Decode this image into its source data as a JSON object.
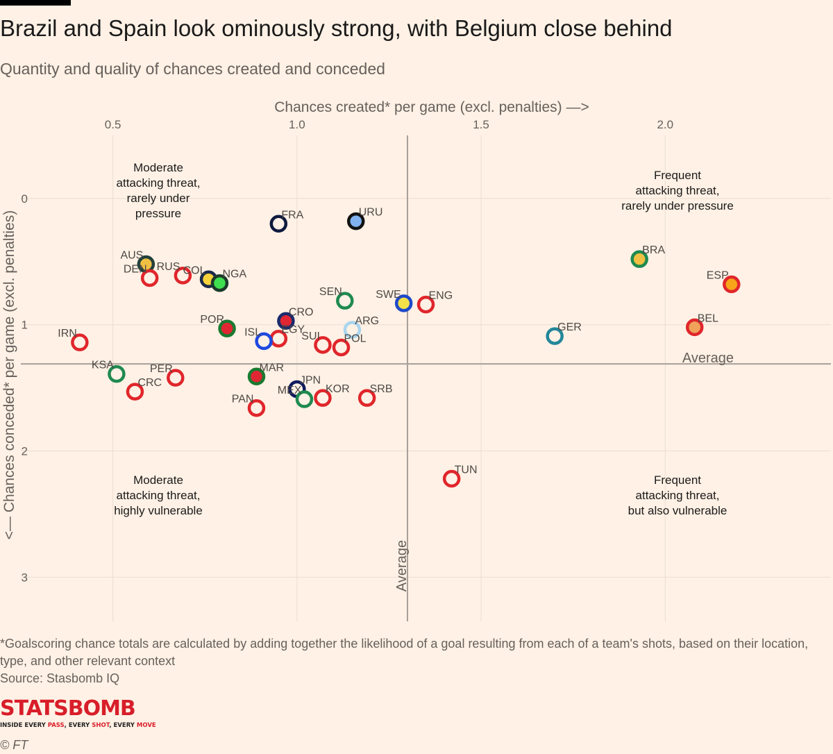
{
  "header": {
    "title": "Brazil and Spain look ominously strong, with Belgium close behind",
    "subtitle": "Quantity and quality of chances created and conceded"
  },
  "chart_data": {
    "type": "scatter",
    "xlabel": "Chances created* per game (excl. penalties) —>",
    "ylabel": "<— Chances conceded* per game (excl. penalties)",
    "xlim": [
      0.25,
      2.45
    ],
    "ylim": [
      -0.5,
      3.35
    ],
    "y_inverted": true,
    "x_ticks": [
      0.5,
      1.0,
      1.5,
      2.0
    ],
    "x_tick_labels": [
      "0.5",
      "1.0",
      "1.5",
      "2.0"
    ],
    "y_ticks": [
      0,
      1,
      2,
      3
    ],
    "y_tick_labels": [
      "0",
      "1",
      "2",
      "3"
    ],
    "average_x": 1.3,
    "average_y": 1.31,
    "average_label": "Average",
    "quadrant_labels": [
      {
        "text": "Moderate attacking threat, rarely under pressure",
        "position": "top-left"
      },
      {
        "text": "Frequent attacking threat, rarely under pressure",
        "position": "top-right"
      },
      {
        "text": "Moderate attacking threat, highly vulnerable",
        "position": "bottom-left"
      },
      {
        "text": "Frequent attacking threat, but also vulnerable",
        "position": "bottom-right"
      }
    ],
    "points": [
      {
        "team": "FRA",
        "x": 0.95,
        "y": 0.2,
        "fill": "#fff1e5",
        "ring": "#0f1a3e",
        "label_side": "right"
      },
      {
        "team": "URU",
        "x": 1.16,
        "y": 0.18,
        "fill": "#7fb2ef",
        "ring": "#121212",
        "label_side": "right"
      },
      {
        "team": "AUS",
        "x": 0.59,
        "y": 0.52,
        "fill": "#f1c043",
        "ring": "#21403a",
        "label_side": "left"
      },
      {
        "team": "DEN",
        "x": 0.6,
        "y": 0.63,
        "fill": "#fff1e5",
        "ring": "#e0262b",
        "label_side": "left"
      },
      {
        "team": "RUS",
        "x": 0.69,
        "y": 0.61,
        "fill": "#fff1e5",
        "ring": "#e0262b",
        "label_side": "left"
      },
      {
        "team": "COL",
        "x": 0.76,
        "y": 0.64,
        "fill": "#f7d23c",
        "ring": "#1a2a4a",
        "label_side": "left"
      },
      {
        "team": "NGA",
        "x": 0.79,
        "y": 0.67,
        "fill": "#3fde4e",
        "ring": "#1c3a2a",
        "label_side": "right"
      },
      {
        "team": "SEN",
        "x": 1.13,
        "y": 0.81,
        "fill": "#fff1e5",
        "ring": "#1f8a50",
        "label_side": "left"
      },
      {
        "team": "SWE",
        "x": 1.29,
        "y": 0.83,
        "fill": "#f3e14a",
        "ring": "#1e49c9",
        "label_side": "left"
      },
      {
        "team": "ENG",
        "x": 1.35,
        "y": 0.84,
        "fill": "#fff1e5",
        "ring": "#e0262b",
        "label_side": "right"
      },
      {
        "team": "CRO",
        "x": 0.97,
        "y": 0.97,
        "fill": "#e02633",
        "ring": "#1a2a6c",
        "label_side": "right"
      },
      {
        "team": "EGY",
        "x": 0.95,
        "y": 1.11,
        "fill": "#fff1e5",
        "ring": "#e0262b",
        "label_side": "right"
      },
      {
        "team": "ARG",
        "x": 1.15,
        "y": 1.04,
        "fill": "#fff1e5",
        "ring": "#a9d6ef",
        "label_side": "right"
      },
      {
        "team": "POR",
        "x": 0.81,
        "y": 1.03,
        "fill": "#e02633",
        "ring": "#1a7a30",
        "label_side": "left"
      },
      {
        "team": "ISL",
        "x": 0.91,
        "y": 1.13,
        "fill": "#fff1e5",
        "ring": "#1e49e0",
        "label_side": "left"
      },
      {
        "team": "SUI",
        "x": 1.07,
        "y": 1.16,
        "fill": "#fff1e5",
        "ring": "#e0262b",
        "label_side": "left"
      },
      {
        "team": "POL",
        "x": 1.12,
        "y": 1.18,
        "fill": "#fff1e5",
        "ring": "#e0262b",
        "label_side": "right"
      },
      {
        "team": "IRN",
        "x": 0.41,
        "y": 1.14,
        "fill": "#fff1e5",
        "ring": "#e0262b",
        "label_side": "left"
      },
      {
        "team": "KSA",
        "x": 0.51,
        "y": 1.39,
        "fill": "#fff1e5",
        "ring": "#1f8a50",
        "label_side": "left"
      },
      {
        "team": "CRC",
        "x": 0.56,
        "y": 1.53,
        "fill": "#fff1e5",
        "ring": "#e0262b",
        "label_side": "right"
      },
      {
        "team": "PER",
        "x": 0.67,
        "y": 1.42,
        "fill": "#fff1e5",
        "ring": "#e0262b",
        "label_side": "left"
      },
      {
        "team": "MAR",
        "x": 0.89,
        "y": 1.41,
        "fill": "#e02633",
        "ring": "#1a7a30",
        "label_side": "right"
      },
      {
        "team": "PAN",
        "x": 0.89,
        "y": 1.66,
        "fill": "#fff1e5",
        "ring": "#e0262b",
        "label_side": "left"
      },
      {
        "team": "JPN",
        "x": 1.0,
        "y": 1.51,
        "fill": "#fff1e5",
        "ring": "#0f1a5e",
        "label_side": "right"
      },
      {
        "team": "MEX",
        "x": 1.02,
        "y": 1.59,
        "fill": "#fff1e5",
        "ring": "#1f8a50",
        "label_side": "left"
      },
      {
        "team": "KOR",
        "x": 1.07,
        "y": 1.58,
        "fill": "#fff1e5",
        "ring": "#e0262b",
        "label_side": "right"
      },
      {
        "team": "SRB",
        "x": 1.19,
        "y": 1.58,
        "fill": "#fff1e5",
        "ring": "#e0262b",
        "label_side": "right"
      },
      {
        "team": "TUN",
        "x": 1.42,
        "y": 2.22,
        "fill": "#fff1e5",
        "ring": "#e0262b",
        "label_side": "right"
      },
      {
        "team": "GER",
        "x": 1.7,
        "y": 1.09,
        "fill": "#fff1e5",
        "ring": "#23879a",
        "label_side": "right"
      },
      {
        "team": "BRA",
        "x": 1.93,
        "y": 0.48,
        "fill": "#f1c043",
        "ring": "#1f8a50",
        "label_side": "right"
      },
      {
        "team": "ESP",
        "x": 2.18,
        "y": 0.68,
        "fill": "#f8a51a",
        "ring": "#e0262b",
        "label_side": "left"
      },
      {
        "team": "BEL",
        "x": 2.08,
        "y": 1.02,
        "fill": "#f0a25a",
        "ring": "#e0262b",
        "label_side": "right"
      }
    ]
  },
  "footer": {
    "footnote": "*Goalscoring chance totals are calculated by adding together the likelihood of a goal resulting from each of a team's shots, based on their location, type, and other relevant context",
    "source": "Source: Stasbomb IQ",
    "logo_main": "STATSBOMB",
    "logo_sub_1": "INSIDE EVERY ",
    "logo_sub_2": "PASS",
    "logo_sub_3": ", EVERY ",
    "logo_sub_4": "SHOT",
    "logo_sub_5": ", EVERY ",
    "logo_sub_6": "MOVE",
    "copyright": "© FT"
  }
}
